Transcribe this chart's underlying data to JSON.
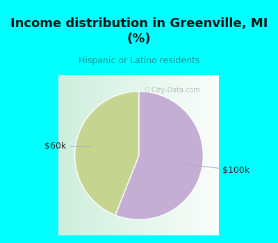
{
  "title": "Income distribution in Greenville, MI\n(%)",
  "subtitle": "Hispanic or Latino residents",
  "title_color": "#111111",
  "subtitle_color": "#1a9090",
  "header_bg": "#00FFFF",
  "chart_bg_left": "#c8ecd8",
  "chart_bg_right": "#f0f8f0",
  "slices": [
    44,
    56
  ],
  "labels": [
    "$60k",
    "$100k"
  ],
  "colors": [
    "#c5d48e",
    "#c5aed4"
  ],
  "startangle": 90,
  "watermark": "⌖ City-Data.com"
}
